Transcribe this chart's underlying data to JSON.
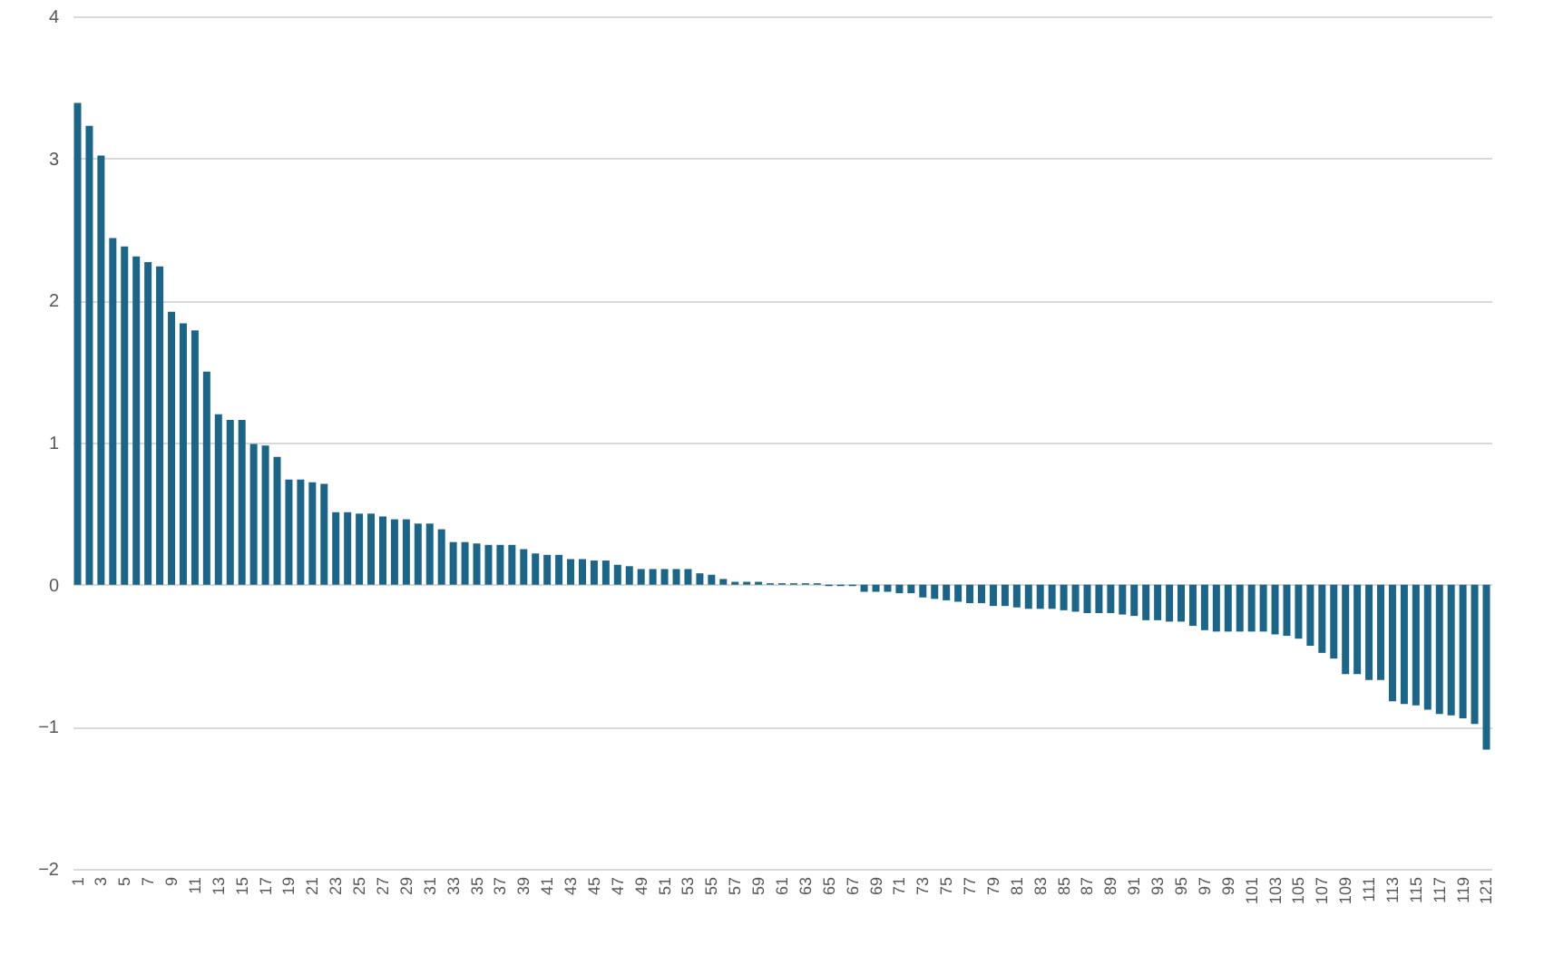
{
  "chart_data": {
    "type": "bar",
    "categories": [
      "1",
      null,
      "3",
      null,
      "5",
      null,
      "7",
      null,
      "9",
      null,
      "11",
      null,
      "13",
      null,
      "15",
      null,
      "17",
      null,
      "19",
      null,
      "21",
      null,
      "23",
      null,
      "25",
      null,
      "27",
      null,
      "29",
      null,
      "31",
      null,
      "33",
      null,
      "35",
      null,
      "37",
      null,
      "39",
      null,
      "41",
      null,
      "43",
      null,
      "45",
      null,
      "47",
      null,
      "49",
      null,
      "51",
      null,
      "53",
      null,
      "55",
      null,
      "57",
      null,
      "59",
      null,
      "61",
      null,
      "63",
      null,
      "65",
      null,
      "67",
      null,
      "69",
      null,
      "71",
      null,
      "73",
      null,
      "75",
      null,
      "77",
      null,
      "79",
      null,
      "81",
      null,
      "83",
      null,
      "85",
      null,
      "87",
      null,
      "89",
      null,
      "91",
      null,
      "93",
      null,
      "95",
      null,
      "97",
      null,
      "99",
      null,
      "101",
      null,
      "103",
      null,
      "105",
      null,
      "107",
      null,
      "109",
      null,
      "111",
      null,
      "113",
      null,
      "115",
      null,
      "117",
      null,
      "119",
      null,
      "121"
    ],
    "values": [
      3.39,
      3.23,
      3.02,
      2.44,
      2.38,
      2.31,
      2.27,
      2.24,
      1.92,
      1.84,
      1.79,
      1.5,
      1.2,
      1.16,
      1.16,
      0.99,
      0.98,
      0.9,
      0.74,
      0.74,
      0.72,
      0.71,
      0.51,
      0.51,
      0.5,
      0.5,
      0.48,
      0.46,
      0.46,
      0.43,
      0.43,
      0.39,
      0.3,
      0.3,
      0.29,
      0.28,
      0.28,
      0.28,
      0.25,
      0.22,
      0.21,
      0.21,
      0.18,
      0.18,
      0.17,
      0.17,
      0.14,
      0.13,
      0.11,
      0.11,
      0.11,
      0.11,
      0.11,
      0.08,
      0.07,
      0.04,
      0.02,
      0.02,
      0.02,
      0.01,
      0.01,
      0.01,
      0.01,
      0.01,
      -0.01,
      -0.01,
      -0.01,
      -0.05,
      -0.05,
      -0.05,
      -0.06,
      -0.06,
      -0.09,
      -0.1,
      -0.11,
      -0.12,
      -0.13,
      -0.13,
      -0.15,
      -0.15,
      -0.16,
      -0.17,
      -0.17,
      -0.17,
      -0.18,
      -0.19,
      -0.2,
      -0.2,
      -0.2,
      -0.21,
      -0.22,
      -0.25,
      -0.25,
      -0.26,
      -0.26,
      -0.29,
      -0.32,
      -0.33,
      -0.33,
      -0.33,
      -0.33,
      -0.33,
      -0.35,
      -0.36,
      -0.38,
      -0.43,
      -0.48,
      -0.52,
      -0.63,
      -0.63,
      -0.67,
      -0.67,
      -0.82,
      -0.84,
      -0.85,
      -0.88,
      -0.91,
      -0.92,
      -0.94,
      -0.98,
      -1.16
    ],
    "color": "#1a6588",
    "ylim": [
      -2,
      4
    ],
    "yticks": [
      -2,
      -1,
      0,
      1,
      2,
      3,
      4
    ],
    "grid": "y"
  }
}
